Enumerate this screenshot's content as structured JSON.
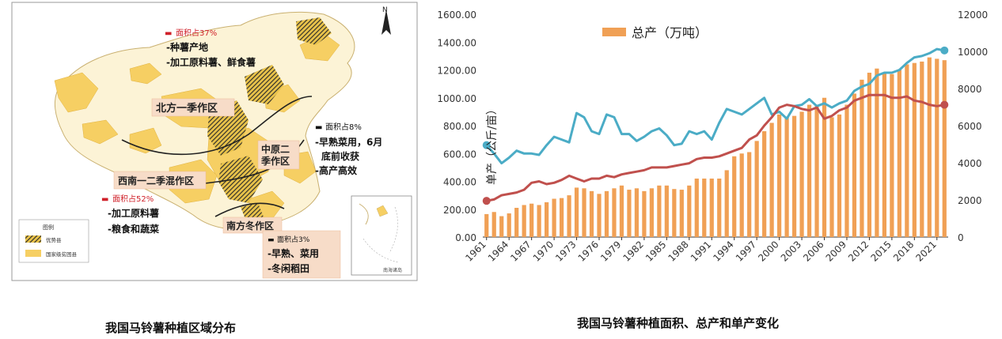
{
  "map": {
    "north_label": "N",
    "caption": "我国马铃薯种植区域分布",
    "zones": [
      {
        "name": "北方一季作区",
        "share": "面积占37%",
        "uses": [
          "-种薯产地",
          "-加工原料薯、鲜食薯"
        ]
      },
      {
        "name": "中原二季作区",
        "share": "面积占8%",
        "uses": [
          "-早熟菜用，6月",
          "底前收获",
          "-高产高效"
        ]
      },
      {
        "name": "西南一二季混作区",
        "share": "面积占52%",
        "uses": [
          "-加工原料薯",
          "-粮食和蔬菜"
        ]
      },
      {
        "name": "南方冬作区",
        "share": "面积占3%",
        "uses": [
          "-早熟、菜用",
          "-冬闲稻田"
        ]
      }
    ],
    "legend": {
      "title": "图例",
      "items": [
        "优势县",
        "国家级贫困县"
      ]
    },
    "inset_label": "南海诸岛",
    "colors": {
      "region_fill": "#f6cf63",
      "region_light": "#fbefc6",
      "zone_label_bg": "#f7dcc8",
      "share_red": "#d0212a"
    }
  },
  "chart_data": {
    "type": "bar",
    "caption": "我国马铃薯种植面积、总产和单产变化",
    "legend": "总产（万吨）",
    "legend_position": "top-center",
    "y_left_label": "单产（公斤/亩）",
    "y_left_range": [
      0,
      1600
    ],
    "y_left_ticks": [
      "0.00",
      "200.00",
      "400.00",
      "600.00",
      "800.00",
      "1000.00",
      "1200.00",
      "1400.00",
      "1600.00"
    ],
    "y_right_range": [
      0,
      12000
    ],
    "y_right_ticks": [
      "0",
      "2000",
      "4000",
      "6000",
      "8000",
      "10000",
      "12000"
    ],
    "x_tick_labels": [
      "1961",
      "1964",
      "1967",
      "1970",
      "1973",
      "1976",
      "1979",
      "1982",
      "1985",
      "1988",
      "1991",
      "1994",
      "1997",
      "2000",
      "2003",
      "2006",
      "2009",
      "2012",
      "2015",
      "2018",
      "2021"
    ],
    "years": [
      1961,
      1962,
      1963,
      1964,
      1965,
      1966,
      1967,
      1968,
      1969,
      1970,
      1971,
      1972,
      1973,
      1974,
      1975,
      1976,
      1977,
      1978,
      1979,
      1980,
      1981,
      1982,
      1983,
      1984,
      1985,
      1986,
      1987,
      1988,
      1989,
      1990,
      1991,
      1992,
      1993,
      1994,
      1995,
      1996,
      1997,
      1998,
      1999,
      2000,
      2001,
      2002,
      2003,
      2004,
      2005,
      2006,
      2007,
      2008,
      2009,
      2010,
      2011,
      2012,
      2013,
      2014,
      2015,
      2016,
      2017,
      2018,
      2019,
      2020,
      2021,
      2022
    ],
    "series": [
      {
        "name": "总产（万吨）",
        "type": "bar",
        "axis": "left",
        "color": "#f0a055",
        "values": [
          165,
          180,
          150,
          170,
          210,
          230,
          240,
          230,
          250,
          275,
          280,
          300,
          355,
          350,
          330,
          310,
          330,
          350,
          370,
          340,
          350,
          330,
          350,
          370,
          370,
          345,
          340,
          370,
          420,
          420,
          420,
          420,
          480,
          580,
          600,
          610,
          690,
          760,
          820,
          880,
          860,
          870,
          900,
          950,
          940,
          1000,
          860,
          880,
          950,
          1030,
          1130,
          1180,
          1210,
          1180,
          1170,
          1200,
          1240,
          1250,
          1260,
          1290,
          1280,
          1270
        ]
      },
      {
        "color": "#4bacc6",
        "axis": "left",
        "values": [
          660,
          600,
          530,
          570,
          620,
          600,
          600,
          590,
          660,
          720,
          700,
          680,
          890,
          860,
          760,
          740,
          880,
          860,
          740,
          740,
          690,
          720,
          760,
          780,
          730,
          660,
          670,
          760,
          740,
          760,
          700,
          820,
          920,
          900,
          880,
          920,
          960,
          1000,
          880,
          900,
          850,
          940,
          950,
          990,
          940,
          960,
          930,
          960,
          980,
          1050,
          1080,
          1100,
          1160,
          1180,
          1180,
          1200,
          1250,
          1290,
          1300,
          1320,
          1350,
          1340
        ]
      },
      {
        "color": "#c0504d",
        "axis": "left",
        "values": [
          260,
          270,
          300,
          310,
          320,
          340,
          390,
          400,
          380,
          390,
          410,
          440,
          420,
          400,
          420,
          420,
          440,
          430,
          450,
          460,
          470,
          480,
          500,
          500,
          500,
          510,
          520,
          530,
          560,
          570,
          570,
          580,
          600,
          620,
          640,
          700,
          730,
          800,
          860,
          930,
          950,
          940,
          920,
          910,
          930,
          850,
          870,
          910,
          930,
          980,
          1000,
          1020,
          1020,
          1020,
          1000,
          1000,
          1010,
          980,
          970,
          950,
          940,
          950
        ]
      }
    ]
  }
}
